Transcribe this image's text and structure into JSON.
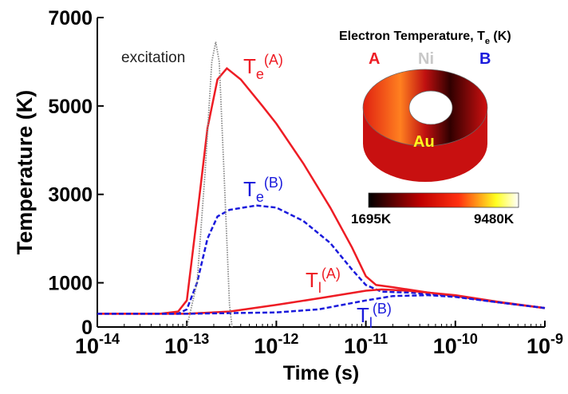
{
  "chart_data": {
    "type": "line",
    "xlabel": "Time (s)",
    "ylabel": "Temperature (K)",
    "xscale": "log",
    "xlim": [
      1e-14,
      1e-09
    ],
    "ylim": [
      0,
      7000
    ],
    "xticks": [
      {
        "value": 1e-14,
        "label": "10",
        "label_sup": "-14"
      },
      {
        "value": 1e-13,
        "label": "10",
        "label_sup": "-13"
      },
      {
        "value": 1e-12,
        "label": "10",
        "label_sup": "-12"
      },
      {
        "value": 1e-11,
        "label": "10",
        "label_sup": "-11"
      },
      {
        "value": 1e-10,
        "label": "10",
        "label_sup": "-10"
      },
      {
        "value": 1e-09,
        "label": "10",
        "label_sup": "-9"
      }
    ],
    "yticks": [
      0,
      1000,
      3000,
      5000,
      7000
    ],
    "series": [
      {
        "name": "T",
        "name_sub": "e",
        "name_sup": "(A)",
        "color": "#ee1c24",
        "dash": "solid",
        "x": [
          1e-14,
          5e-14,
          8e-14,
          1e-13,
          1.3e-13,
          1.7e-13,
          2.2e-13,
          2.8e-13,
          4e-13,
          7e-13,
          1e-12,
          2e-12,
          4e-12,
          7e-12,
          1e-11,
          1.3e-11,
          2e-11,
          5e-11,
          1e-10,
          3e-10,
          1e-09
        ],
        "values": [
          300,
          300,
          350,
          600,
          2500,
          4500,
          5600,
          5850,
          5600,
          5000,
          4600,
          3700,
          2700,
          1800,
          1150,
          950,
          900,
          780,
          700,
          560,
          430
        ]
      },
      {
        "name": "T",
        "name_sub": "e",
        "name_sup": "(B)",
        "color": "#1a1adc",
        "dash": "dashed",
        "x": [
          1e-14,
          8e-14,
          1e-13,
          1.3e-13,
          1.7e-13,
          2.2e-13,
          3e-13,
          6e-13,
          1e-12,
          2e-12,
          4e-12,
          7e-12,
          1e-11,
          1.5e-11,
          3e-11,
          1e-10,
          3e-10,
          1e-09
        ],
        "values": [
          300,
          300,
          400,
          1000,
          2000,
          2500,
          2650,
          2750,
          2700,
          2400,
          1900,
          1300,
          950,
          800,
          780,
          700,
          560,
          430
        ]
      },
      {
        "name": "T",
        "name_sub": "l",
        "name_sup": "(A)",
        "color": "#ee1c24",
        "dash": "solid",
        "x": [
          1e-14,
          1e-13,
          3e-13,
          1e-12,
          3e-12,
          1e-11,
          1.5e-11,
          3e-11,
          1e-10,
          3e-10,
          1e-09
        ],
        "values": [
          300,
          300,
          350,
          500,
          650,
          820,
          850,
          820,
          720,
          570,
          430
        ]
      },
      {
        "name": "T",
        "name_sub": "l",
        "name_sup": "(B)",
        "color": "#1a1adc",
        "dash": "dashed",
        "x": [
          1e-14,
          1e-13,
          1e-12,
          3e-12,
          1e-11,
          2e-11,
          5e-11,
          1e-10,
          3e-10,
          1e-09
        ],
        "values": [
          300,
          300,
          330,
          400,
          600,
          700,
          720,
          680,
          560,
          430
        ]
      },
      {
        "name": "excitation",
        "color": "#888888",
        "dash": "dotted",
        "x": [
          1e-13,
          1.3e-13,
          1.6e-13,
          1.9e-13,
          2.1e-13,
          2.3e-13,
          2.6e-13,
          3e-13,
          3.2e-13
        ],
        "values": [
          0,
          1000,
          3500,
          6000,
          6450,
          6000,
          3500,
          500,
          0
        ]
      }
    ],
    "inset": {
      "title": "Electron Temperature, T",
      "title_sub": "e",
      "title_end": " (K)",
      "labels": [
        "A",
        "Ni",
        "B",
        "Au"
      ],
      "colorbar_min": "1695K",
      "colorbar_max": "9480K"
    }
  }
}
